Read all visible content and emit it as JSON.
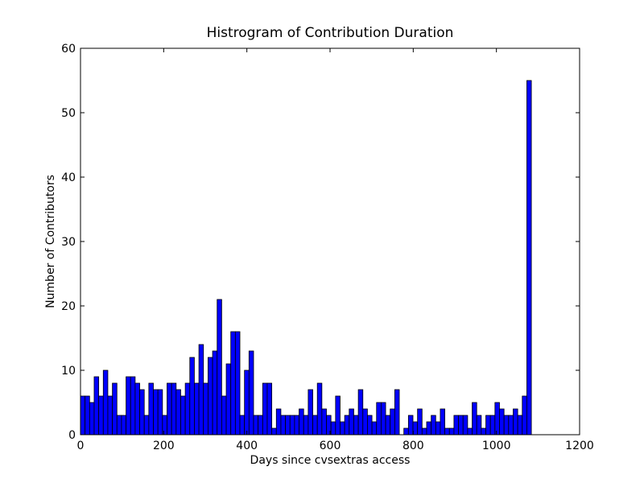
{
  "chart_data": {
    "type": "bar",
    "title": "Histrogram of Contribution Duration",
    "xlabel": "Days since cvsextras access",
    "ylabel": "Number of Contributors",
    "xlim": [
      0,
      1200
    ],
    "ylim": [
      0,
      60
    ],
    "xticks": [
      "0",
      "200",
      "400",
      "600",
      "800",
      "1000",
      "1200"
    ],
    "yticks": [
      "0",
      "10",
      "20",
      "30",
      "40",
      "50",
      "60"
    ],
    "grid": false,
    "bar_color": "#0000ff",
    "edge_color": "#000000",
    "bin_width": 10.95,
    "bin_start": 0,
    "counts": [
      6,
      6,
      5,
      9,
      6,
      10,
      6,
      8,
      3,
      3,
      9,
      9,
      8,
      7,
      3,
      8,
      7,
      7,
      3,
      8,
      8,
      7,
      6,
      8,
      12,
      8,
      14,
      8,
      12,
      13,
      21,
      6,
      11,
      16,
      16,
      3,
      10,
      13,
      3,
      3,
      8,
      8,
      1,
      4,
      3,
      3,
      3,
      3,
      4,
      3,
      7,
      3,
      8,
      4,
      3,
      2,
      6,
      2,
      3,
      4,
      3,
      7,
      4,
      3,
      2,
      5,
      5,
      3,
      4,
      7,
      0,
      1,
      3,
      2,
      4,
      1,
      2,
      3,
      2,
      4,
      1,
      1,
      3,
      3,
      3,
      1,
      5,
      3,
      1,
      3,
      3,
      5,
      4,
      3,
      3,
      4,
      3,
      6,
      55,
      0
    ]
  }
}
